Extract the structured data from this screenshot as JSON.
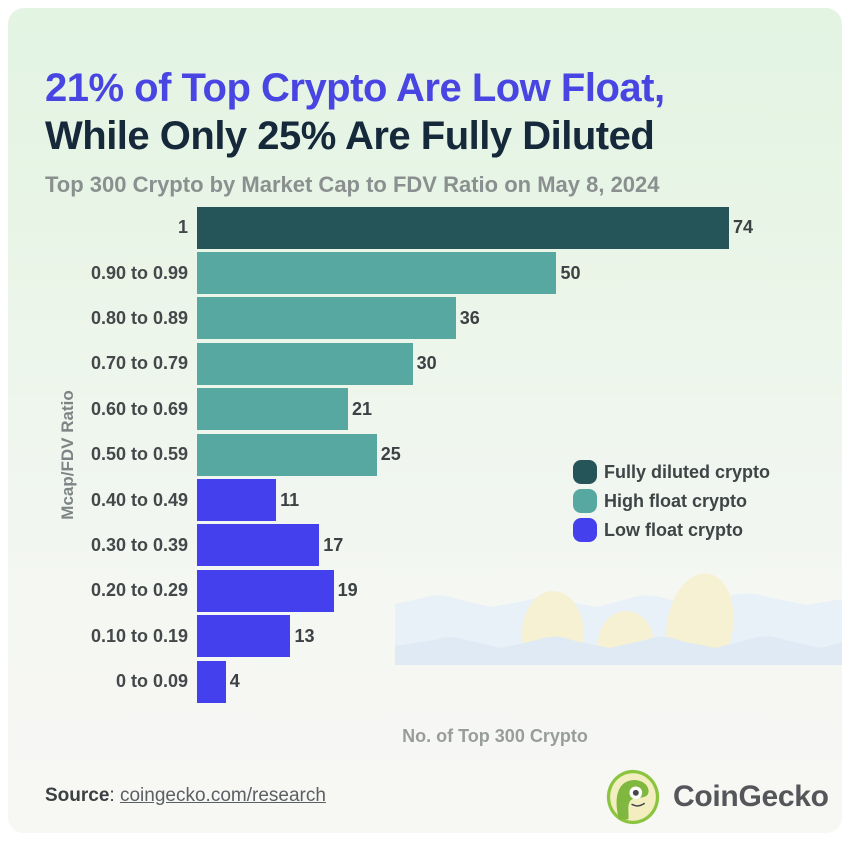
{
  "page": {
    "title_line1": "21% of Top Crypto Are Low Float,",
    "title_line2": "While Only 25% Are Fully Diluted",
    "subtitle": "Top 300 Crypto by Market Cap to FDV Ratio on May 8, 2024"
  },
  "colors": {
    "title_accent": "#4845e2",
    "title_dark": "#16293a",
    "fully_diluted": "#265559",
    "high_float": "#58a8a2",
    "low_float": "#4540ee"
  },
  "chart_data": {
    "type": "bar",
    "orientation": "horizontal",
    "title": "21% of Top Crypto Are Low Float, While Only 25% Are Fully Diluted",
    "subtitle": "Top 300 Crypto by Market Cap to FDV Ratio on May 8, 2024",
    "categories": [
      "1",
      "0.90 to 0.99",
      "0.80 to 0.89",
      "0.70 to 0.79",
      "0.60 to 0.69",
      "0.50 to 0.59",
      "0.40 to 0.49",
      "0.30 to 0.39",
      "0.20 to 0.29",
      "0.10 to 0.19",
      "0 to 0.09"
    ],
    "values": [
      74,
      50,
      36,
      30,
      21,
      25,
      11,
      17,
      19,
      13,
      4
    ],
    "groups": [
      "fully_diluted",
      "high_float",
      "high_float",
      "high_float",
      "high_float",
      "high_float",
      "low_float",
      "low_float",
      "low_float",
      "low_float",
      "low_float"
    ],
    "xlabel": "No. of Top 300 Crypto",
    "ylabel": "Mcap/FDV Ratio",
    "xlim": [
      0,
      74
    ],
    "grid": false,
    "value_labels": true,
    "legend_position": "middle-right",
    "legend": [
      {
        "label": "Fully diluted crypto",
        "color_key": "fully_diluted"
      },
      {
        "label": "High float crypto",
        "color_key": "high_float"
      },
      {
        "label": "Low float crypto",
        "color_key": "low_float"
      }
    ]
  },
  "footer": {
    "source_label": "Source",
    "source_separator": ": ",
    "source_link": "coingecko.com/research",
    "brand_name": "CoinGecko"
  }
}
